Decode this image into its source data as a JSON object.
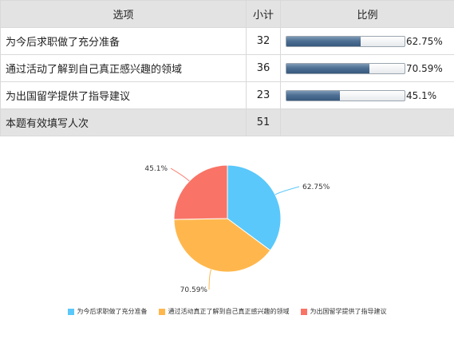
{
  "table": {
    "headers": {
      "option": "选项",
      "count": "小计",
      "ratio": "比例"
    },
    "rows": [
      {
        "option": "为今后求职做了充分准备",
        "count": "32",
        "percent": "62.75%",
        "fraction": 0.6275
      },
      {
        "option": "通过活动了解到自己真正感兴趣的领域",
        "count": "36",
        "percent": "70.59%",
        "fraction": 0.7059
      },
      {
        "option": "为出国留学提供了指导建议",
        "count": "23",
        "percent": "45.1%",
        "fraction": 0.451
      }
    ],
    "summary": {
      "label": "本题有效填写人次",
      "count": "51"
    }
  },
  "colors": {
    "slice1": "#5ac8fa",
    "slice2": "#ffb74d",
    "slice3": "#f97466"
  },
  "chart_data": {
    "type": "pie",
    "categories": [
      "为今后求职做了充分准备",
      "通过活动真正了解到自己真正感兴趣的领域",
      "为出国留学提供了指导建议"
    ],
    "values": [
      32,
      36,
      23
    ],
    "data_labels": [
      "62.75%",
      "70.59%",
      "45.1%"
    ],
    "legend_position": "bottom",
    "legend": [
      "为今后求职做了充分准备",
      "通过活动真正了解到自己真正感兴趣的领域",
      "为出国留学提供了指导建议"
    ]
  }
}
